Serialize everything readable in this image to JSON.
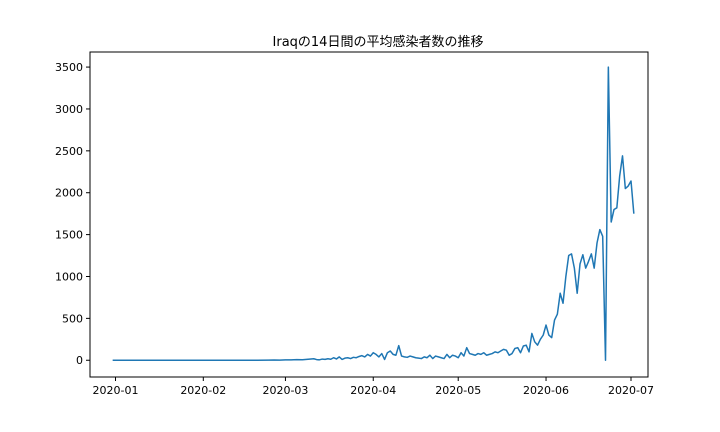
{
  "chart_data": {
    "type": "line",
    "title": "Iraqの14日間の平均感染者数の推移",
    "xlabel": "",
    "ylabel": "",
    "x_ticks": [
      "2020-01",
      "2020-02",
      "2020-03",
      "2020-04",
      "2020-05",
      "2020-06",
      "2020-07"
    ],
    "y_ticks": [
      0,
      500,
      1000,
      1500,
      2000,
      2500,
      3000,
      3500
    ],
    "xlim": [
      "2019-12-23",
      "2020-07-07"
    ],
    "ylim": [
      -200,
      3680
    ],
    "grid": false,
    "line_color": "#1f77b4",
    "series": [
      {
        "points": [
          [
            "2019-12-31",
            0
          ],
          [
            "2020-01-10",
            0
          ],
          [
            "2020-01-20",
            0
          ],
          [
            "2020-01-31",
            0
          ],
          [
            "2020-02-10",
            0
          ],
          [
            "2020-02-20",
            0
          ],
          [
            "2020-02-24",
            1
          ],
          [
            "2020-02-26",
            3
          ],
          [
            "2020-02-28",
            2
          ],
          [
            "2020-03-01",
            5
          ],
          [
            "2020-03-03",
            4
          ],
          [
            "2020-03-05",
            8
          ],
          [
            "2020-03-07",
            6
          ],
          [
            "2020-03-09",
            12
          ],
          [
            "2020-03-11",
            18
          ],
          [
            "2020-03-12",
            8
          ],
          [
            "2020-03-13",
            5
          ],
          [
            "2020-03-14",
            14
          ],
          [
            "2020-03-15",
            10
          ],
          [
            "2020-03-16",
            18
          ],
          [
            "2020-03-17",
            12
          ],
          [
            "2020-03-18",
            30
          ],
          [
            "2020-03-19",
            15
          ],
          [
            "2020-03-20",
            40
          ],
          [
            "2020-03-21",
            10
          ],
          [
            "2020-03-22",
            25
          ],
          [
            "2020-03-23",
            30
          ],
          [
            "2020-03-24",
            20
          ],
          [
            "2020-03-25",
            35
          ],
          [
            "2020-03-26",
            30
          ],
          [
            "2020-03-27",
            45
          ],
          [
            "2020-03-28",
            55
          ],
          [
            "2020-03-29",
            40
          ],
          [
            "2020-03-30",
            70
          ],
          [
            "2020-03-31",
            50
          ],
          [
            "2020-04-01",
            90
          ],
          [
            "2020-04-02",
            70
          ],
          [
            "2020-04-03",
            40
          ],
          [
            "2020-04-04",
            80
          ],
          [
            "2020-04-05",
            10
          ],
          [
            "2020-04-06",
            90
          ],
          [
            "2020-04-07",
            110
          ],
          [
            "2020-04-08",
            70
          ],
          [
            "2020-04-09",
            60
          ],
          [
            "2020-04-10",
            175
          ],
          [
            "2020-04-11",
            50
          ],
          [
            "2020-04-12",
            40
          ],
          [
            "2020-04-13",
            35
          ],
          [
            "2020-04-14",
            50
          ],
          [
            "2020-04-15",
            40
          ],
          [
            "2020-04-16",
            30
          ],
          [
            "2020-04-17",
            25
          ],
          [
            "2020-04-18",
            20
          ],
          [
            "2020-04-19",
            40
          ],
          [
            "2020-04-20",
            30
          ],
          [
            "2020-04-21",
            60
          ],
          [
            "2020-04-22",
            20
          ],
          [
            "2020-04-23",
            50
          ],
          [
            "2020-04-24",
            40
          ],
          [
            "2020-04-25",
            30
          ],
          [
            "2020-04-26",
            20
          ],
          [
            "2020-04-27",
            70
          ],
          [
            "2020-04-28",
            30
          ],
          [
            "2020-04-29",
            60
          ],
          [
            "2020-04-30",
            50
          ],
          [
            "2020-05-01",
            30
          ],
          [
            "2020-05-02",
            90
          ],
          [
            "2020-05-03",
            50
          ],
          [
            "2020-05-04",
            150
          ],
          [
            "2020-05-05",
            80
          ],
          [
            "2020-05-06",
            70
          ],
          [
            "2020-05-07",
            60
          ],
          [
            "2020-05-08",
            80
          ],
          [
            "2020-05-09",
            70
          ],
          [
            "2020-05-10",
            90
          ],
          [
            "2020-05-11",
            60
          ],
          [
            "2020-05-12",
            70
          ],
          [
            "2020-05-13",
            80
          ],
          [
            "2020-05-14",
            100
          ],
          [
            "2020-05-15",
            90
          ],
          [
            "2020-05-16",
            110
          ],
          [
            "2020-05-17",
            130
          ],
          [
            "2020-05-18",
            120
          ],
          [
            "2020-05-19",
            60
          ],
          [
            "2020-05-20",
            80
          ],
          [
            "2020-05-21",
            140
          ],
          [
            "2020-05-22",
            150
          ],
          [
            "2020-05-23",
            90
          ],
          [
            "2020-05-24",
            170
          ],
          [
            "2020-05-25",
            180
          ],
          [
            "2020-05-26",
            100
          ],
          [
            "2020-05-27",
            320
          ],
          [
            "2020-05-28",
            220
          ],
          [
            "2020-05-29",
            180
          ],
          [
            "2020-05-30",
            250
          ],
          [
            "2020-05-31",
            300
          ],
          [
            "2020-06-01",
            420
          ],
          [
            "2020-06-02",
            300
          ],
          [
            "2020-06-03",
            270
          ],
          [
            "2020-06-04",
            480
          ],
          [
            "2020-06-05",
            550
          ],
          [
            "2020-06-06",
            800
          ],
          [
            "2020-06-07",
            680
          ],
          [
            "2020-06-08",
            1000
          ],
          [
            "2020-06-09",
            1250
          ],
          [
            "2020-06-10",
            1270
          ],
          [
            "2020-06-11",
            1100
          ],
          [
            "2020-06-12",
            800
          ],
          [
            "2020-06-13",
            1150
          ],
          [
            "2020-06-14",
            1260
          ],
          [
            "2020-06-15",
            1100
          ],
          [
            "2020-06-16",
            1180
          ],
          [
            "2020-06-17",
            1270
          ],
          [
            "2020-06-18",
            1100
          ],
          [
            "2020-06-19",
            1400
          ],
          [
            "2020-06-20",
            1560
          ],
          [
            "2020-06-21",
            1480
          ],
          [
            "2020-06-22",
            0
          ],
          [
            "2020-06-23",
            3500
          ],
          [
            "2020-06-24",
            1650
          ],
          [
            "2020-06-25",
            1800
          ],
          [
            "2020-06-26",
            1820
          ],
          [
            "2020-06-27",
            2200
          ],
          [
            "2020-06-28",
            2440
          ],
          [
            "2020-06-29",
            2050
          ],
          [
            "2020-06-30",
            2080
          ],
          [
            "2020-07-01",
            2140
          ],
          [
            "2020-07-02",
            1750
          ]
        ]
      }
    ]
  }
}
